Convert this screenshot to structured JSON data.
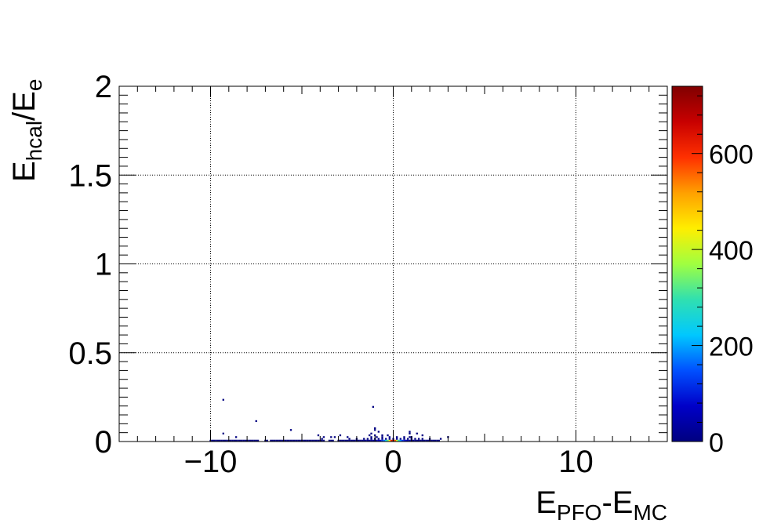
{
  "chart_data": {
    "type": "heatmap",
    "title": "",
    "xlabel": {
      "base": "E",
      "sub": "PFO",
      "mid": "-E",
      "sub2": "MC"
    },
    "ylabel": {
      "base": "E",
      "sub": "hcal",
      "mid": "/E",
      "sub2": "e"
    },
    "xlim": [
      -15,
      15
    ],
    "ylim": [
      0,
      2
    ],
    "x_ticks": [
      {
        "value": -10,
        "label": "−10"
      },
      {
        "value": 0,
        "label": "0"
      },
      {
        "value": 10,
        "label": "10"
      }
    ],
    "y_ticks": [
      {
        "value": 0,
        "label": "0"
      },
      {
        "value": 0.5,
        "label": "0.5"
      },
      {
        "value": 1,
        "label": "1"
      },
      {
        "value": 1.5,
        "label": "1.5"
      },
      {
        "value": 2,
        "label": "2"
      }
    ],
    "grid": true,
    "colorbar": {
      "zlim": [
        0,
        740
      ],
      "ticks": [
        {
          "value": 0,
          "label": "0"
        },
        {
          "value": 200,
          "label": "200"
        },
        {
          "value": 400,
          "label": "400"
        },
        {
          "value": 600,
          "label": "600"
        }
      ],
      "palette": [
        "#000080",
        "#0000c8",
        "#0050ff",
        "#00c8ff",
        "#30e0b0",
        "#a0ff40",
        "#ffee00",
        "#ffa000",
        "#ff3000",
        "#c80000",
        "#800000"
      ]
    },
    "bin_width_x": 0.1,
    "bin_height_y": 0.01,
    "cells": [
      [
        -10.0,
        0.0,
        3
      ],
      [
        -9.9,
        0.0,
        3
      ],
      [
        -9.8,
        0.0,
        3
      ],
      [
        -9.7,
        0.0,
        3
      ],
      [
        -9.6,
        0.0,
        3
      ],
      [
        -9.5,
        0.0,
        3
      ],
      [
        -9.4,
        0.0,
        3
      ],
      [
        -9.3,
        0.0,
        3
      ],
      [
        -9.2,
        0.0,
        3
      ],
      [
        -9.1,
        0.0,
        3
      ],
      [
        -9.0,
        0.0,
        3
      ],
      [
        -8.9,
        0.0,
        3
      ],
      [
        -8.8,
        0.0,
        3
      ],
      [
        -8.7,
        0.0,
        3
      ],
      [
        -8.6,
        0.0,
        3
      ],
      [
        -8.5,
        0.0,
        3
      ],
      [
        -8.4,
        0.0,
        3
      ],
      [
        -8.3,
        0.0,
        3
      ],
      [
        -8.2,
        0.0,
        3
      ],
      [
        -8.1,
        0.0,
        3
      ],
      [
        -8.0,
        0.0,
        3
      ],
      [
        -7.9,
        0.0,
        2
      ],
      [
        -7.8,
        0.0,
        2
      ],
      [
        -7.7,
        0.0,
        2
      ],
      [
        -7.6,
        0.0,
        2
      ],
      [
        -7.5,
        0.0,
        2
      ],
      [
        -7.4,
        0.0,
        2
      ],
      [
        -7.0,
        0.0,
        2
      ],
      [
        -6.9,
        0.0,
        2
      ],
      [
        -6.7,
        0.0,
        2
      ],
      [
        -6.6,
        0.0,
        2
      ],
      [
        -6.5,
        0.0,
        2
      ],
      [
        -6.4,
        0.0,
        2
      ],
      [
        -6.3,
        0.0,
        2
      ],
      [
        -6.2,
        0.0,
        2
      ],
      [
        -6.1,
        0.0,
        2
      ],
      [
        -6.0,
        0.0,
        2
      ],
      [
        -5.9,
        0.0,
        2
      ],
      [
        -5.8,
        0.0,
        2
      ],
      [
        -5.7,
        0.0,
        2
      ],
      [
        -5.6,
        0.0,
        2
      ],
      [
        -5.5,
        0.0,
        2
      ],
      [
        -5.4,
        0.0,
        2
      ],
      [
        -5.3,
        0.0,
        2
      ],
      [
        -5.2,
        0.0,
        2
      ],
      [
        -5.1,
        0.0,
        2
      ],
      [
        -5.0,
        0.0,
        2
      ],
      [
        -4.9,
        0.0,
        2
      ],
      [
        -4.8,
        0.0,
        2
      ],
      [
        -4.7,
        0.0,
        2
      ],
      [
        -4.6,
        0.0,
        2
      ],
      [
        -4.5,
        0.0,
        2
      ],
      [
        -4.4,
        0.0,
        2
      ],
      [
        -4.3,
        0.0,
        2
      ],
      [
        -4.2,
        0.0,
        2
      ],
      [
        -4.1,
        0.0,
        2
      ],
      [
        -4.0,
        0.0,
        2
      ],
      [
        -3.9,
        0.0,
        2
      ],
      [
        -3.8,
        0.0,
        2
      ],
      [
        -3.5,
        0.0,
        2
      ],
      [
        -3.4,
        0.0,
        2
      ],
      [
        -3.3,
        0.0,
        2
      ],
      [
        -3.0,
        0.0,
        3
      ],
      [
        -2.9,
        0.0,
        3
      ],
      [
        -2.8,
        0.0,
        3
      ],
      [
        -2.7,
        0.0,
        3
      ],
      [
        -2.6,
        0.0,
        4
      ],
      [
        -2.5,
        0.0,
        4
      ],
      [
        -2.4,
        0.0,
        4
      ],
      [
        -2.3,
        0.0,
        5
      ],
      [
        -2.2,
        0.0,
        5
      ],
      [
        -2.1,
        0.0,
        5
      ],
      [
        -2.0,
        0.0,
        6
      ],
      [
        -1.9,
        0.0,
        7
      ],
      [
        -1.8,
        0.0,
        8
      ],
      [
        -1.7,
        0.0,
        9
      ],
      [
        -1.6,
        0.0,
        11
      ],
      [
        -1.5,
        0.0,
        13
      ],
      [
        -1.4,
        0.0,
        15
      ],
      [
        -1.3,
        0.0,
        18
      ],
      [
        -1.2,
        0.0,
        22
      ],
      [
        -1.1,
        0.0,
        26
      ],
      [
        -1.0,
        0.0,
        32
      ],
      [
        -0.9,
        0.0,
        40
      ],
      [
        -0.8,
        0.0,
        55
      ],
      [
        -0.7,
        0.0,
        80
      ],
      [
        -0.6,
        0.0,
        120
      ],
      [
        -0.5,
        0.0,
        170
      ],
      [
        -0.4,
        0.0,
        240
      ],
      [
        -0.3,
        0.0,
        330
      ],
      [
        -0.2,
        0.0,
        450
      ],
      [
        -0.1,
        0.0,
        620
      ],
      [
        0.0,
        0.0,
        730
      ],
      [
        0.1,
        0.0,
        560
      ],
      [
        0.2,
        0.0,
        400
      ],
      [
        0.3,
        0.0,
        280
      ],
      [
        0.4,
        0.0,
        190
      ],
      [
        0.5,
        0.0,
        130
      ],
      [
        0.6,
        0.0,
        90
      ],
      [
        0.7,
        0.0,
        60
      ],
      [
        0.8,
        0.0,
        40
      ],
      [
        0.9,
        0.0,
        28
      ],
      [
        1.0,
        0.0,
        20
      ],
      [
        1.1,
        0.0,
        14
      ],
      [
        1.2,
        0.0,
        10
      ],
      [
        1.3,
        0.0,
        8
      ],
      [
        1.4,
        0.0,
        6
      ],
      [
        1.5,
        0.0,
        5
      ],
      [
        1.6,
        0.0,
        4
      ],
      [
        1.7,
        0.0,
        3
      ],
      [
        1.8,
        0.0,
        3
      ],
      [
        1.9,
        0.0,
        2
      ],
      [
        2.0,
        0.0,
        2
      ],
      [
        2.1,
        0.0,
        2
      ],
      [
        2.2,
        0.0,
        2
      ],
      [
        2.3,
        0.0,
        2
      ],
      [
        2.4,
        0.0,
        1
      ],
      [
        2.5,
        0.0,
        1
      ],
      [
        -1.6,
        0.01,
        2
      ],
      [
        -1.4,
        0.01,
        3
      ],
      [
        -1.2,
        0.01,
        4
      ],
      [
        -1.0,
        0.01,
        5
      ],
      [
        -0.8,
        0.01,
        6
      ],
      [
        -0.6,
        0.01,
        10
      ],
      [
        -0.4,
        0.01,
        16
      ],
      [
        -0.2,
        0.01,
        26
      ],
      [
        0.0,
        0.01,
        40
      ],
      [
        0.2,
        0.01,
        28
      ],
      [
        0.4,
        0.01,
        18
      ],
      [
        0.6,
        0.01,
        10
      ],
      [
        0.8,
        0.01,
        6
      ],
      [
        1.0,
        0.01,
        4
      ],
      [
        1.2,
        0.01,
        3
      ],
      [
        1.4,
        0.01,
        2
      ],
      [
        1.6,
        0.01,
        2
      ],
      [
        -2.4,
        0.01,
        1
      ],
      [
        -2.0,
        0.01,
        1
      ],
      [
        -3.9,
        0.01,
        1
      ],
      [
        -1.2,
        0.02,
        2
      ],
      [
        -0.6,
        0.02,
        3
      ],
      [
        -0.2,
        0.02,
        5
      ],
      [
        0.2,
        0.02,
        4
      ],
      [
        0.6,
        0.02,
        3
      ],
      [
        1.0,
        0.02,
        2
      ],
      [
        -0.9,
        0.02,
        2
      ],
      [
        0.9,
        0.02,
        2
      ],
      [
        -1.3,
        0.03,
        1
      ],
      [
        -1.0,
        0.03,
        2
      ],
      [
        -0.6,
        0.03,
        1
      ],
      [
        -0.3,
        0.03,
        1
      ],
      [
        0.9,
        0.04,
        1
      ],
      [
        -1.2,
        0.04,
        1
      ],
      [
        -0.8,
        0.05,
        1
      ],
      [
        -1.0,
        0.06,
        1
      ],
      [
        -1.0,
        0.07,
        1
      ],
      [
        -9.3,
        0.04,
        1
      ],
      [
        -8.6,
        0.02,
        1
      ],
      [
        -7.5,
        0.11,
        1
      ],
      [
        -5.6,
        0.06,
        1
      ],
      [
        -4.1,
        0.03,
        1
      ],
      [
        -3.8,
        0.02,
        1
      ],
      [
        -3.4,
        0.02,
        1
      ],
      [
        -3.2,
        0.02,
        1
      ],
      [
        -2.9,
        0.03,
        1
      ],
      [
        -2.5,
        0.02,
        1
      ],
      [
        -9.3,
        0.23,
        1
      ],
      [
        -1.1,
        0.19,
        1
      ],
      [
        0.9,
        0.05,
        1
      ],
      [
        1.3,
        0.04,
        1
      ],
      [
        1.6,
        0.03,
        1
      ],
      [
        2.0,
        0.01,
        1
      ],
      [
        2.6,
        0.01,
        1
      ],
      [
        3.0,
        0.02,
        1
      ]
    ]
  }
}
